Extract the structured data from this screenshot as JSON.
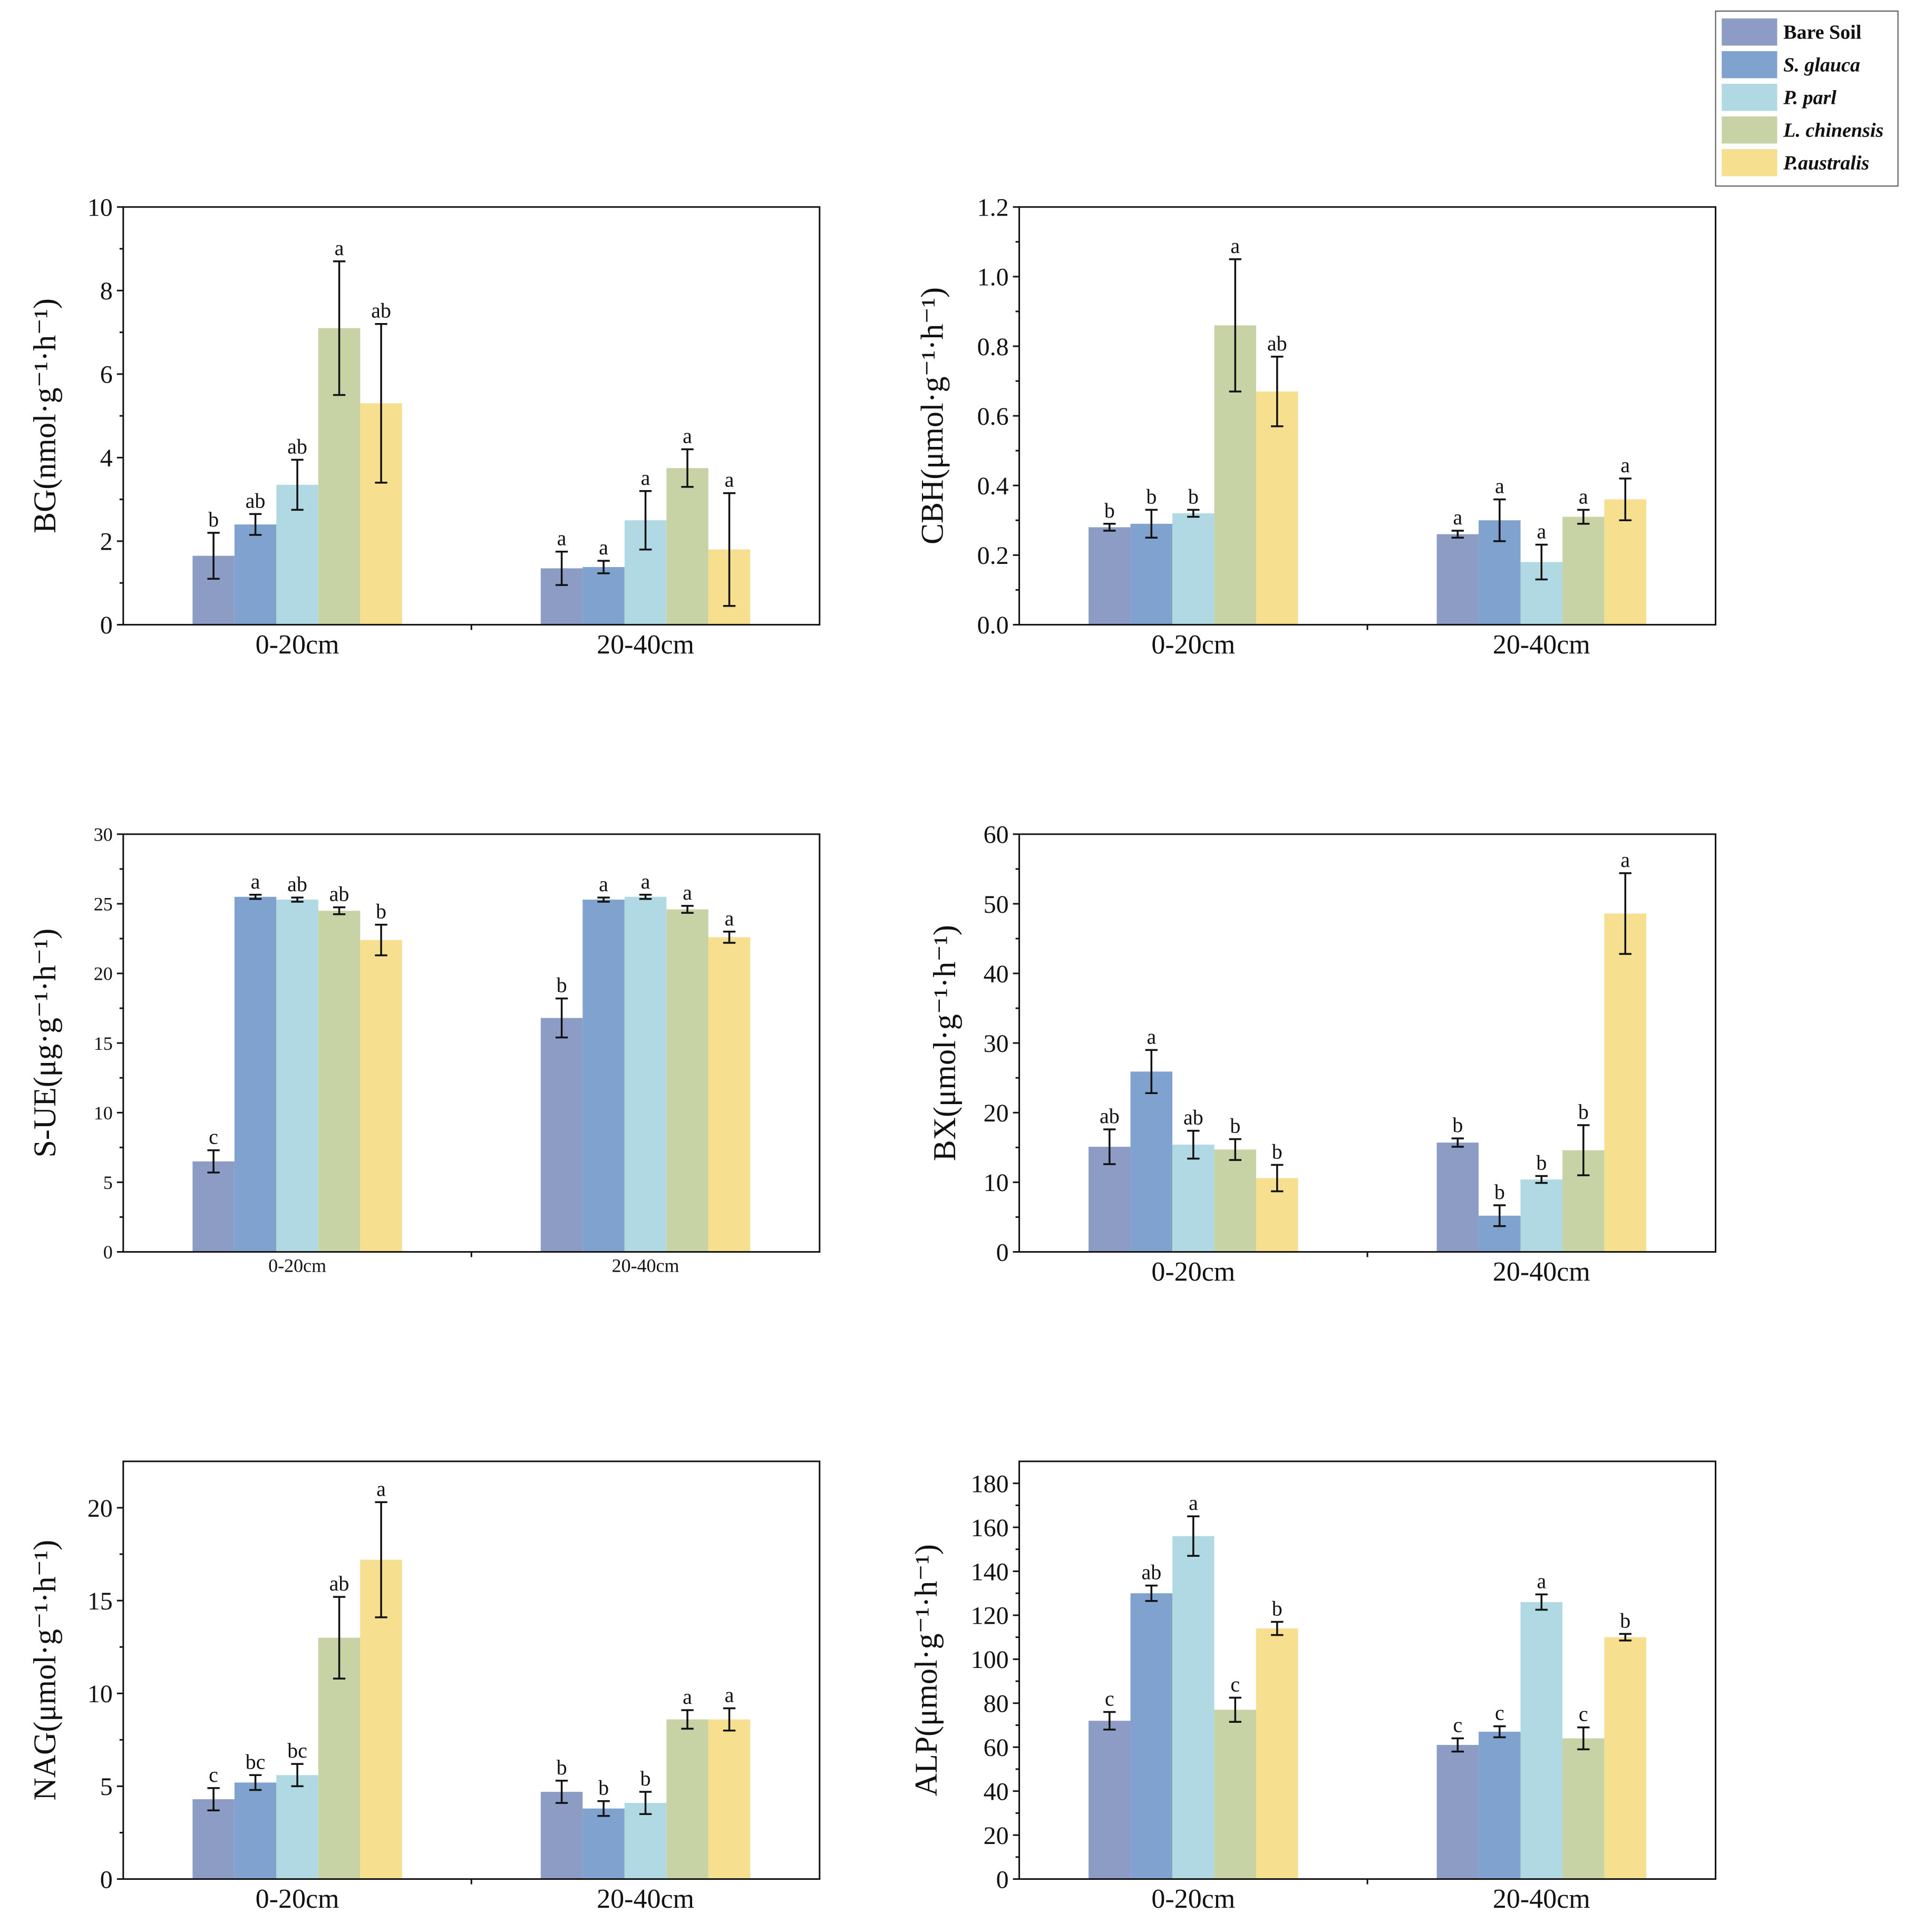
{
  "legend": {
    "items": [
      {
        "name": "Bare Soil",
        "color": "#8d9cc4",
        "italic": false
      },
      {
        "name": "S. glauca",
        "color": "#7fa2cf",
        "italic": true
      },
      {
        "name": "P. parl",
        "color": "#b0d9e3",
        "italic": true
      },
      {
        "name": "L. chinensis",
        "color": "#c7d3a5",
        "italic": true
      },
      {
        "name": "P.australis",
        "color": "#f6df8e",
        "italic": true
      }
    ]
  },
  "chart_data": [
    {
      "type": "bar",
      "ylabel": "BG(nmol·g⁻¹·h⁻¹)",
      "categories": [
        "0-20cm",
        "20-40cm"
      ],
      "ylim": [
        0,
        10
      ],
      "yticks": [
        "0",
        "2",
        "4",
        "6",
        "8",
        "10"
      ],
      "series": [
        {
          "name": "Bare Soil",
          "values": [
            1.65,
            1.35
          ],
          "errors": [
            0.55,
            0.4
          ],
          "labels": [
            "b",
            "a"
          ]
        },
        {
          "name": "S. glauca",
          "values": [
            2.4,
            1.38
          ],
          "errors": [
            0.25,
            0.15
          ],
          "labels": [
            "ab",
            "a"
          ]
        },
        {
          "name": "P. parl",
          "values": [
            3.35,
            2.5
          ],
          "errors": [
            0.6,
            0.7
          ],
          "labels": [
            "ab",
            "a"
          ]
        },
        {
          "name": "L. chinensis",
          "values": [
            7.1,
            3.75
          ],
          "errors": [
            1.6,
            0.45
          ],
          "labels": [
            "a",
            "a"
          ]
        },
        {
          "name": "P.australis",
          "values": [
            5.3,
            1.8
          ],
          "errors": [
            1.9,
            1.35
          ],
          "labels": [
            "ab",
            "a"
          ]
        }
      ]
    },
    {
      "type": "bar",
      "ylabel": "CBH(μmol·g⁻¹·h⁻¹)",
      "categories": [
        "0-20cm",
        "20-40cm"
      ],
      "ylim": [
        0,
        1.2
      ],
      "yticks": [
        "0.0",
        "0.2",
        "0.4",
        "0.6",
        "0.8",
        "1.0",
        "1.2"
      ],
      "series": [
        {
          "name": "Bare Soil",
          "values": [
            0.28,
            0.26
          ],
          "errors": [
            0.01,
            0.01
          ],
          "labels": [
            "b",
            "a"
          ]
        },
        {
          "name": "S. glauca",
          "values": [
            0.29,
            0.3
          ],
          "errors": [
            0.04,
            0.06
          ],
          "labels": [
            "b",
            "a"
          ]
        },
        {
          "name": "P. parl",
          "values": [
            0.32,
            0.18
          ],
          "errors": [
            0.01,
            0.05
          ],
          "labels": [
            "b",
            "a"
          ]
        },
        {
          "name": "L. chinensis",
          "values": [
            0.86,
            0.31
          ],
          "errors": [
            0.19,
            0.02
          ],
          "labels": [
            "a",
            "a"
          ]
        },
        {
          "name": "P.australis",
          "values": [
            0.67,
            0.36
          ],
          "errors": [
            0.1,
            0.06
          ],
          "labels": [
            "ab",
            "a"
          ]
        }
      ]
    },
    {
      "type": "bar",
      "ylabel": "S-UE(μg·g⁻¹·h⁻¹)",
      "categories": [
        "0-20cm",
        "20-40cm"
      ],
      "ylim": [
        0,
        30
      ],
      "yticks": [
        "0",
        "5",
        "10",
        "15",
        "20",
        "25",
        "30"
      ],
      "series": [
        {
          "name": "Bare Soil",
          "values": [
            6.5,
            16.8
          ],
          "errors": [
            0.8,
            1.4
          ],
          "labels": [
            "c",
            "b"
          ]
        },
        {
          "name": "S. glauca",
          "values": [
            25.5,
            25.3
          ],
          "errors": [
            0.15,
            0.15
          ],
          "labels": [
            "a",
            "a"
          ]
        },
        {
          "name": "P. parl",
          "values": [
            25.3,
            25.5
          ],
          "errors": [
            0.15,
            0.15
          ],
          "labels": [
            "ab",
            "a"
          ]
        },
        {
          "name": "L. chinensis",
          "values": [
            24.5,
            24.6
          ],
          "errors": [
            0.25,
            0.25
          ],
          "labels": [
            "ab",
            "a"
          ]
        },
        {
          "name": "P.australis",
          "values": [
            22.4,
            22.6
          ],
          "errors": [
            1.1,
            0.4
          ],
          "labels": [
            "b",
            "a"
          ]
        }
      ]
    },
    {
      "type": "bar",
      "ylabel": "BX(μmol·g⁻¹·h⁻¹)",
      "categories": [
        "0-20cm",
        "20-40cm"
      ],
      "ylim": [
        0,
        60
      ],
      "yticks": [
        "0",
        "10",
        "20",
        "30",
        "40",
        "50",
        "60"
      ],
      "series": [
        {
          "name": "Bare Soil",
          "values": [
            15.1,
            15.7
          ],
          "errors": [
            2.5,
            0.6
          ],
          "labels": [
            "ab",
            "b"
          ]
        },
        {
          "name": "S. glauca",
          "values": [
            25.9,
            5.2
          ],
          "errors": [
            3.1,
            1.5
          ],
          "labels": [
            "a",
            "b"
          ]
        },
        {
          "name": "P. parl",
          "values": [
            15.4,
            10.4
          ],
          "errors": [
            2.0,
            0.5
          ],
          "labels": [
            "ab",
            "b"
          ]
        },
        {
          "name": "L. chinensis",
          "values": [
            14.7,
            14.6
          ],
          "errors": [
            1.5,
            3.6
          ],
          "labels": [
            "b",
            "b"
          ]
        },
        {
          "name": "P.australis",
          "values": [
            10.6,
            48.6
          ],
          "errors": [
            1.9,
            5.8
          ],
          "labels": [
            "b",
            "a"
          ]
        }
      ]
    },
    {
      "type": "bar",
      "ylabel": "NAG(μmol·g⁻¹·h⁻¹)",
      "categories": [
        "0-20cm",
        "20-40cm"
      ],
      "ylim": [
        0,
        22.5
      ],
      "yticks": [
        "0",
        "5",
        "10",
        "15",
        "20"
      ],
      "series": [
        {
          "name": "Bare Soil",
          "values": [
            4.3,
            4.7
          ],
          "errors": [
            0.6,
            0.6
          ],
          "labels": [
            "c",
            "b"
          ]
        },
        {
          "name": "S. glauca",
          "values": [
            5.2,
            3.8
          ],
          "errors": [
            0.4,
            0.4
          ],
          "labels": [
            "bc",
            "b"
          ]
        },
        {
          "name": "P. parl",
          "values": [
            5.6,
            4.1
          ],
          "errors": [
            0.6,
            0.6
          ],
          "labels": [
            "bc",
            "b"
          ]
        },
        {
          "name": "L. chinensis",
          "values": [
            13.0,
            8.6
          ],
          "errors": [
            2.2,
            0.5
          ],
          "labels": [
            "ab",
            "a"
          ]
        },
        {
          "name": "P.australis",
          "values": [
            17.2,
            8.6
          ],
          "errors": [
            3.1,
            0.6
          ],
          "labels": [
            "a",
            "a"
          ]
        }
      ]
    },
    {
      "type": "bar",
      "ylabel": "ALP(μmol·g⁻¹·h⁻¹)",
      "categories": [
        "0-20cm",
        "20-40cm"
      ],
      "ylim": [
        0,
        190
      ],
      "yticks": [
        "0",
        "20",
        "40",
        "60",
        "80",
        "100",
        "120",
        "140",
        "160",
        "180"
      ],
      "series": [
        {
          "name": "Bare Soil",
          "values": [
            72,
            61
          ],
          "errors": [
            4,
            3
          ],
          "labels": [
            "c",
            "c"
          ]
        },
        {
          "name": "S. glauca",
          "values": [
            130,
            67
          ],
          "errors": [
            3.5,
            2.5
          ],
          "labels": [
            "ab",
            "c"
          ]
        },
        {
          "name": "P. parl",
          "values": [
            156,
            126
          ],
          "errors": [
            9,
            3.5
          ],
          "labels": [
            "a",
            "a"
          ]
        },
        {
          "name": "L. chinensis",
          "values": [
            77,
            64
          ],
          "errors": [
            5.5,
            5
          ],
          "labels": [
            "c",
            "c"
          ]
        },
        {
          "name": "P.australis",
          "values": [
            114,
            110
          ],
          "errors": [
            3,
            1.5
          ],
          "labels": [
            "b",
            "b"
          ]
        }
      ]
    }
  ]
}
